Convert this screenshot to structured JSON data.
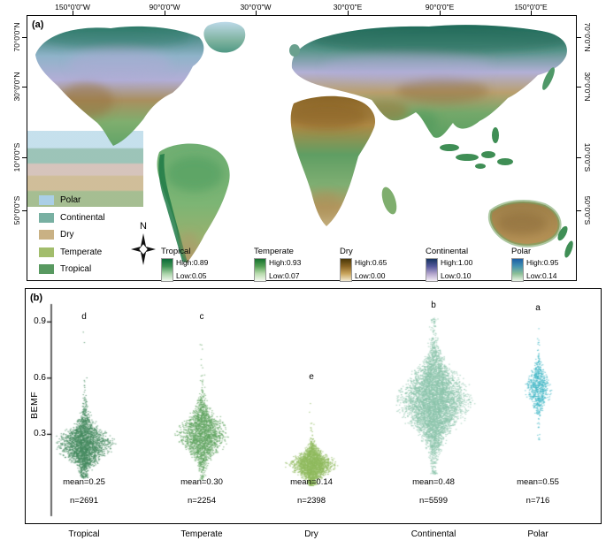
{
  "panels": {
    "a_label": "(a)",
    "b_label": "(b)"
  },
  "map": {
    "lon_labels": [
      "150°0'0\"W",
      "90°0'0\"W",
      "30°0'0\"W",
      "30°0'0\"E",
      "90°0'0\"E",
      "150°0'0\"E"
    ],
    "lat_labels": [
      "70°0'0\"N",
      "30°0'0\"N",
      "10°0'0\"S",
      "50°0'0\"S"
    ],
    "compass_label": "N",
    "climate_legend": [
      {
        "label": "Polar",
        "color": "#aacfe6"
      },
      {
        "label": "Continental",
        "color": "#78b0a2"
      },
      {
        "label": "Dry",
        "color": "#c9b184"
      },
      {
        "label": "Temperate",
        "color": "#a2bd6c"
      },
      {
        "label": "Tropical",
        "color": "#589960"
      }
    ],
    "gradient_legends": [
      {
        "name": "Tropical",
        "high_label": "High:0.89",
        "low_label": "Low:0.05",
        "stops": [
          "#0c6b38",
          "#3f9355",
          "#a8d3a8",
          "#f3faf1"
        ]
      },
      {
        "name": "Temperate",
        "high_label": "High:0.93",
        "low_label": "Low:0.07",
        "stops": [
          "#14702e",
          "#55a055",
          "#b9dcae",
          "#f5faf0"
        ]
      },
      {
        "name": "Dry",
        "high_label": "High:0.65",
        "low_label": "Low:0.00",
        "stops": [
          "#4a3708",
          "#8a6524",
          "#c9a45c",
          "#f2ead3"
        ]
      },
      {
        "name": "Continental",
        "high_label": "High:1.00",
        "low_label": "Low:0.10",
        "stops": [
          "#15335e",
          "#55599c",
          "#b2a3cb",
          "#f4eff6"
        ]
      },
      {
        "name": "Polar",
        "high_label": "High:0.95",
        "low_label": "Low:0.14",
        "stops": [
          "#1a5ea6",
          "#4492b0",
          "#8cbf96",
          "#ecf5e7"
        ]
      }
    ]
  },
  "chart_data": {
    "type": "beeswarm",
    "ylabel": "BEMF",
    "ylim": [
      0,
      0.95
    ],
    "yticks": [
      0.3,
      0.6,
      0.9
    ],
    "ytick_labels": [
      "0.3",
      "0.6",
      "0.9"
    ],
    "categories": [
      "Tropical",
      "Temperate",
      "Dry",
      "Continental",
      "Polar"
    ],
    "series": [
      {
        "name": "Tropical",
        "sig_letter": "d",
        "mean": 0.25,
        "n": 2691,
        "mean_label": "mean=0.25",
        "n_label": "n=2691",
        "color": "#44895e",
        "sd": 0.072,
        "min": 0.07,
        "max": 0.86,
        "tail_frac": 0.05,
        "half_width": 40,
        "letter_y": 0.9
      },
      {
        "name": "Temperate",
        "sig_letter": "c",
        "mean": 0.3,
        "n": 2254,
        "mean_label": "mean=0.30",
        "n_label": "n=2254",
        "color": "#5fa35f",
        "sd": 0.08,
        "min": 0.06,
        "max": 0.8,
        "tail_frac": 0.05,
        "half_width": 37,
        "letter_y": 0.9
      },
      {
        "name": "Dry",
        "sig_letter": "e",
        "mean": 0.14,
        "n": 2398,
        "mean_label": "mean=0.14",
        "n_label": "n=2398",
        "color": "#8fba5d",
        "sd": 0.048,
        "min": 0.03,
        "max": 0.52,
        "tail_frac": 0.05,
        "half_width": 33,
        "letter_y": 0.58
      },
      {
        "name": "Continental",
        "sig_letter": "b",
        "mean": 0.48,
        "n": 5599,
        "mean_label": "mean=0.48",
        "n_label": "n=5599",
        "color": "#8bc3ab",
        "sd": 0.125,
        "min": 0.09,
        "max": 0.92,
        "tail_frac": 0.03,
        "half_width": 52,
        "letter_y": 0.96
      },
      {
        "name": "Polar",
        "sig_letter": "a",
        "mean": 0.55,
        "n": 716,
        "mean_label": "mean=0.55",
        "n_label": "n=716",
        "color": "#3eb5c5",
        "sd": 0.068,
        "min": 0.26,
        "max": 0.88,
        "tail_frac": 0.09,
        "half_width": 20,
        "letter_y": 0.95
      }
    ]
  }
}
